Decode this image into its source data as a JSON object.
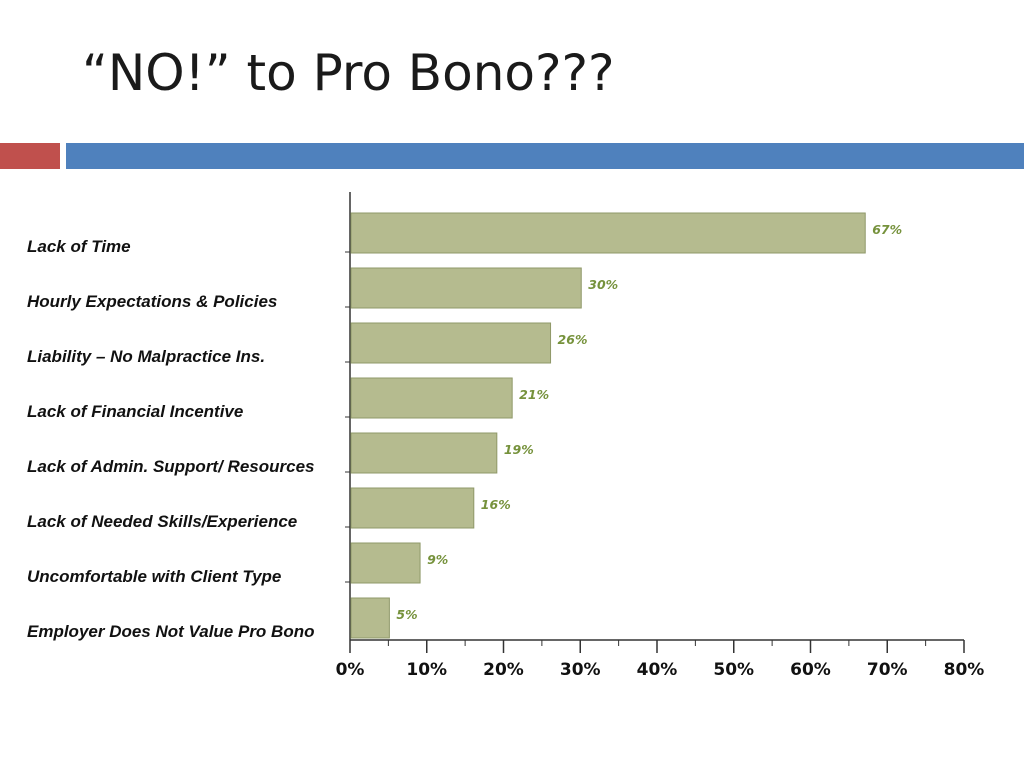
{
  "slide": {
    "title": "“NO!” to Pro Bono???",
    "colors": {
      "accent_red": "#c0504d",
      "accent_blue": "#4f81bd"
    }
  },
  "chart_data": {
    "type": "bar",
    "orientation": "horizontal",
    "title": "",
    "xlabel": "",
    "ylabel": "",
    "categories": [
      "Lack of Time",
      "Hourly Expectations & Policies",
      "Liability – No Malpractice Ins.",
      "Lack of Financial Incentive",
      "Lack of Admin. Support/ Resources",
      "Lack of Needed Skills/Experience",
      "Uncomfortable with Client Type",
      "Employer Does Not Value Pro Bono"
    ],
    "values": [
      67,
      30,
      26,
      21,
      19,
      16,
      9,
      5
    ],
    "value_labels": [
      "67%",
      "30%",
      "26%",
      "21%",
      "19%",
      "16%",
      "9%",
      "5%"
    ],
    "xlim": [
      0,
      80
    ],
    "x_ticks": [
      "0%",
      "10%",
      "20%",
      "30%",
      "40%",
      "50%",
      "60%",
      "70%",
      "80%"
    ],
    "grid": false,
    "legend": "none",
    "colors": {
      "bar_fill": "#b5bb8f",
      "bar_stroke": "#8f9868",
      "value_label": "#76923c",
      "axis": "#333333"
    }
  }
}
